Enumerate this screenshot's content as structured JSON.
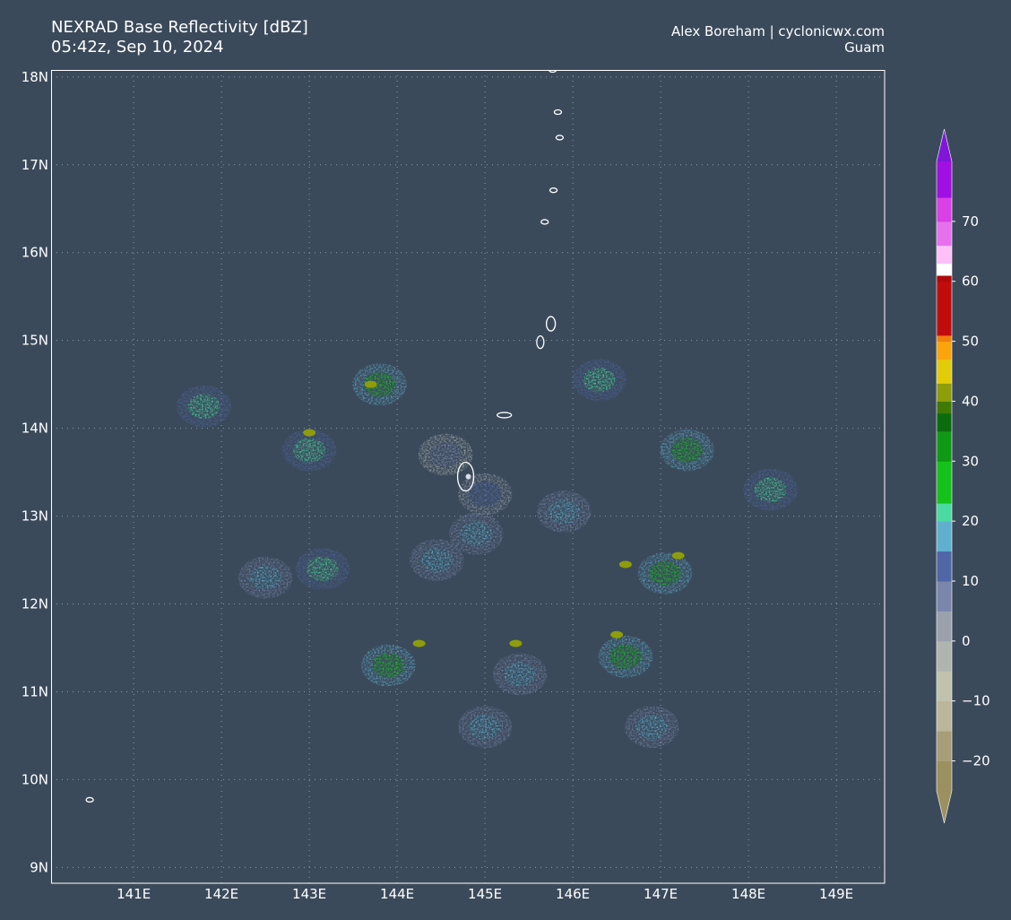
{
  "header": {
    "title": "NEXRAD Base Reflectivity [dBZ]",
    "subtitle": "05:42z, Sep 10, 2024",
    "credit": "Alex Boreham | cyclonicwx.com",
    "location": "Guam"
  },
  "map": {
    "lon_range": [
      140.06,
      149.55
    ],
    "lat_range": [
      8.82,
      18.08
    ],
    "lon_ticks": [
      {
        "value": 141,
        "label": "141E"
      },
      {
        "value": 142,
        "label": "142E"
      },
      {
        "value": 143,
        "label": "143E"
      },
      {
        "value": 144,
        "label": "144E"
      },
      {
        "value": 145,
        "label": "145E"
      },
      {
        "value": 146,
        "label": "146E"
      },
      {
        "value": 147,
        "label": "147E"
      },
      {
        "value": 148,
        "label": "148E"
      },
      {
        "value": 149,
        "label": "149E"
      }
    ],
    "lat_ticks": [
      {
        "value": 9,
        "label": "9N"
      },
      {
        "value": 10,
        "label": "10N"
      },
      {
        "value": 11,
        "label": "11N"
      },
      {
        "value": 12,
        "label": "12N"
      },
      {
        "value": 13,
        "label": "13N"
      },
      {
        "value": 14,
        "label": "14N"
      },
      {
        "value": 15,
        "label": "15N"
      },
      {
        "value": 16,
        "label": "16N"
      },
      {
        "value": 17,
        "label": "17N"
      },
      {
        "value": 18,
        "label": "18N"
      }
    ],
    "grid": "dotted",
    "background_color": "#3b4a5b",
    "coastline_color": "#ffffff",
    "islands": [
      {
        "name": "Guam",
        "lon": 144.78,
        "lat": 13.45
      },
      {
        "name": "Rota",
        "lon": 145.22,
        "lat": 14.15
      },
      {
        "name": "Tinian",
        "lon": 145.63,
        "lat": 14.98
      },
      {
        "name": "Saipan",
        "lon": 145.75,
        "lat": 15.19
      },
      {
        "name": "Anatahan",
        "lon": 145.68,
        "lat": 16.35
      },
      {
        "name": "Sarigan",
        "lon": 145.78,
        "lat": 16.71
      },
      {
        "name": "Guguan",
        "lon": 145.85,
        "lat": 17.31
      },
      {
        "name": "Alamagan",
        "lon": 145.83,
        "lat": 17.6
      },
      {
        "name": "Pagan",
        "lon": 145.77,
        "lat": 18.08
      },
      {
        "name": "Islet",
        "lon": 140.5,
        "lat": 9.77
      }
    ],
    "radar_site": {
      "lon": 144.81,
      "lat": 13.45
    },
    "echo_regions": [
      {
        "lon": 147.05,
        "lat": 12.35,
        "level": 25
      },
      {
        "lon": 147.3,
        "lat": 13.75,
        "level": 25
      },
      {
        "lon": 146.6,
        "lat": 11.4,
        "level": 25
      },
      {
        "lon": 146.9,
        "lat": 10.6,
        "level": 15
      },
      {
        "lon": 148.25,
        "lat": 13.3,
        "level": 20
      },
      {
        "lon": 143.9,
        "lat": 11.3,
        "level": 25
      },
      {
        "lon": 143.15,
        "lat": 12.4,
        "level": 20
      },
      {
        "lon": 143.0,
        "lat": 13.75,
        "level": 20
      },
      {
        "lon": 143.8,
        "lat": 14.5,
        "level": 25
      },
      {
        "lon": 144.45,
        "lat": 12.5,
        "level": 15
      },
      {
        "lon": 145.4,
        "lat": 11.2,
        "level": 15
      },
      {
        "lon": 144.9,
        "lat": 12.8,
        "level": 15
      },
      {
        "lon": 145.0,
        "lat": 10.6,
        "level": 15
      },
      {
        "lon": 144.55,
        "lat": 13.7,
        "level": 5
      },
      {
        "lon": 145.0,
        "lat": 13.25,
        "level": 10
      },
      {
        "lon": 141.8,
        "lat": 14.25,
        "level": 20
      },
      {
        "lon": 142.5,
        "lat": 12.3,
        "level": 15
      },
      {
        "lon": 145.9,
        "lat": 13.05,
        "level": 15
      },
      {
        "lon": 146.3,
        "lat": 14.55,
        "level": 20
      }
    ],
    "convective_cores": [
      {
        "lon": 147.2,
        "lat": 12.55,
        "level": 42
      },
      {
        "lon": 146.5,
        "lat": 11.65,
        "level": 42
      },
      {
        "lon": 146.6,
        "lat": 12.45,
        "level": 42
      },
      {
        "lon": 144.25,
        "lat": 11.55,
        "level": 42
      },
      {
        "lon": 145.35,
        "lat": 11.55,
        "level": 42
      },
      {
        "lon": 143.0,
        "lat": 13.95,
        "level": 42
      },
      {
        "lon": 143.7,
        "lat": 14.5,
        "level": 42
      }
    ]
  },
  "colorbar": {
    "range": [
      -25,
      80
    ],
    "stops": [
      {
        "v": -25,
        "c": "#9c9060"
      },
      {
        "v": -20,
        "c": "#a89d76"
      },
      {
        "v": -15,
        "c": "#bdb59a"
      },
      {
        "v": -10,
        "c": "#c0c2ac"
      },
      {
        "v": -5,
        "c": "#b0b4ae"
      },
      {
        "v": 0,
        "c": "#9aa1ad"
      },
      {
        "v": 5,
        "c": "#7b86ad"
      },
      {
        "v": 10,
        "c": "#4f67a6"
      },
      {
        "v": 15,
        "c": "#5fb0cf"
      },
      {
        "v": 20,
        "c": "#49dba0"
      },
      {
        "v": 23,
        "c": "#15c11b"
      },
      {
        "v": 30,
        "c": "#0f9a16"
      },
      {
        "v": 35,
        "c": "#0a6c0d"
      },
      {
        "v": 38,
        "c": "#3f7a05"
      },
      {
        "v": 40,
        "c": "#8e9d0a"
      },
      {
        "v": 43,
        "c": "#e2cc0a"
      },
      {
        "v": 47,
        "c": "#fca40c"
      },
      {
        "v": 50,
        "c": "#f17f0c"
      },
      {
        "v": 51,
        "c": "#c20c0c"
      },
      {
        "v": 60,
        "c": "#b00808"
      },
      {
        "v": 61,
        "c": "#ffffff"
      },
      {
        "v": 63,
        "c": "#ffc0f7"
      },
      {
        "v": 66,
        "c": "#e770ed"
      },
      {
        "v": 70,
        "c": "#d940e6"
      },
      {
        "v": 74,
        "c": "#a010e2"
      },
      {
        "v": 80,
        "c": "#7f16d8"
      }
    ],
    "ticks": [
      {
        "value": -20,
        "label": "−20"
      },
      {
        "value": -10,
        "label": "−10"
      },
      {
        "value": 0,
        "label": "0"
      },
      {
        "value": 10,
        "label": "10"
      },
      {
        "value": 20,
        "label": "20"
      },
      {
        "value": 30,
        "label": "30"
      },
      {
        "value": 40,
        "label": "40"
      },
      {
        "value": 50,
        "label": "50"
      },
      {
        "value": 60,
        "label": "60"
      },
      {
        "value": 70,
        "label": "70"
      }
    ]
  }
}
